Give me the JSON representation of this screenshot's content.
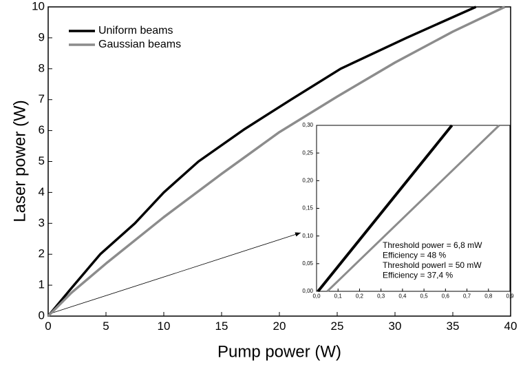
{
  "chart_data": [
    {
      "type": "line",
      "xlabel": "Pump power (W)",
      "ylabel": "Laser power (W)",
      "xlim": [
        0,
        40
      ],
      "ylim": [
        0,
        10
      ],
      "xticks": [
        0,
        5,
        10,
        15,
        20,
        25,
        30,
        35,
        40
      ],
      "yticks": [
        0,
        1,
        2,
        3,
        4,
        5,
        6,
        7,
        8,
        9,
        10
      ],
      "legend": "upper left",
      "series": [
        {
          "name": "Uniform beams",
          "color": "#000000",
          "x": [
            0,
            2,
            4.5,
            7.5,
            10,
            13,
            17,
            21,
            25.3,
            31,
            37
          ],
          "values": [
            0,
            0.9,
            2,
            3,
            4,
            5,
            6.05,
            7,
            8,
            9,
            10
          ]
        },
        {
          "name": "Gaussian beams",
          "color": "#8c8c8c",
          "x": [
            0,
            2,
            5,
            10,
            15,
            20,
            25,
            30,
            35,
            39.5
          ],
          "values": [
            0,
            0.75,
            1.7,
            3.2,
            4.6,
            5.95,
            7.1,
            8.2,
            9.2,
            10
          ]
        }
      ]
    },
    {
      "type": "line",
      "xlim": [
        0,
        0.9
      ],
      "ylim": [
        0,
        0.3
      ],
      "xticks": [
        {
          "value": 0,
          "label": "0,0"
        },
        {
          "value": 0.1,
          "label": "0,1"
        },
        {
          "value": 0.2,
          "label": "0,2"
        },
        {
          "value": 0.3,
          "label": "0,3"
        },
        {
          "value": 0.4,
          "label": "0,4"
        },
        {
          "value": 0.5,
          "label": "0,5"
        },
        {
          "value": 0.6,
          "label": "0,6"
        },
        {
          "value": 0.7,
          "label": "0,7"
        },
        {
          "value": 0.8,
          "label": "0,8"
        },
        {
          "value": 0.9,
          "label": "0,9"
        }
      ],
      "yticks": [
        {
          "value": 0,
          "label": "0,00"
        },
        {
          "value": 0.05,
          "label": "0,05"
        },
        {
          "value": 0.1,
          "label": "0,10"
        },
        {
          "value": 0.15,
          "label": "0,15"
        },
        {
          "value": 0.2,
          "label": "0,20"
        },
        {
          "value": 0.25,
          "label": "0,25"
        },
        {
          "value": 0.3,
          "label": "0,30"
        }
      ],
      "annotations": [
        "Threshold power = 6,8 mW",
        "Efficiency = 48 %",
        "Threshold powerl = 50 mW",
        "Efficiency = 37,4 %"
      ],
      "series": [
        {
          "color": "#000000",
          "x": [
            0.0068,
            0.63
          ],
          "values": [
            0,
            0.3
          ]
        },
        {
          "color": "#8c8c8c",
          "x": [
            0.05,
            0.85
          ],
          "values": [
            0,
            0.3
          ]
        }
      ]
    }
  ]
}
